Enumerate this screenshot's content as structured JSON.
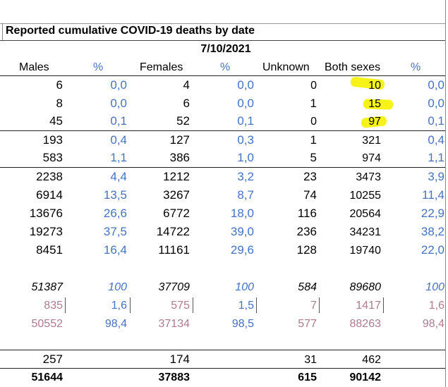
{
  "title": "Reported cumulative COVID-19 deaths by date",
  "date": "7/10/2021",
  "headers": {
    "males": "Males",
    "pct1": "%",
    "females": "Females",
    "pct2": "%",
    "unknown": "Unknown",
    "both": "Both sexes",
    "pct3": "%"
  },
  "rows": [
    {
      "males": "6",
      "mp": "0,0",
      "females": "4",
      "fp": "0,0",
      "unknown": "0",
      "both": "10",
      "bp": "0,0"
    },
    {
      "males": "8",
      "mp": "0,0",
      "females": "6",
      "fp": "0,0",
      "unknown": "1",
      "both": "15",
      "bp": "0,0"
    },
    {
      "males": "45",
      "mp": "0,1",
      "females": "52",
      "fp": "0,1",
      "unknown": "0",
      "both": "97",
      "bp": "0,1"
    },
    {
      "males": "193",
      "mp": "0,4",
      "females": "127",
      "fp": "0,3",
      "unknown": "1",
      "both": "321",
      "bp": "0,4"
    },
    {
      "males": "583",
      "mp": "1,1",
      "females": "386",
      "fp": "1,0",
      "unknown": "5",
      "both": "974",
      "bp": "1,1"
    },
    {
      "males": "2238",
      "mp": "4,4",
      "females": "1212",
      "fp": "3,2",
      "unknown": "23",
      "both": "3473",
      "bp": "3,9"
    },
    {
      "males": "6914",
      "mp": "13,5",
      "females": "3267",
      "fp": "8,7",
      "unknown": "74",
      "both": "10255",
      "bp": "11,4"
    },
    {
      "males": "13676",
      "mp": "26,6",
      "females": "6772",
      "fp": "18,0",
      "unknown": "116",
      "both": "20564",
      "bp": "22,9"
    },
    {
      "males": "19273",
      "mp": "37,5",
      "females": "14722",
      "fp": "39,0",
      "unknown": "236",
      "both": "34231",
      "bp": "38,2"
    },
    {
      "males": "8451",
      "mp": "16,4",
      "females": "11161",
      "fp": "29,6",
      "unknown": "128",
      "both": "19740",
      "bp": "22,0"
    }
  ],
  "subtotal": {
    "males": "51387",
    "mp": "100",
    "females": "37709",
    "fp": "100",
    "unknown": "584",
    "both": "89680",
    "bp": "100"
  },
  "split1": {
    "males": "835",
    "mp": "1,6",
    "females": "575",
    "fp": "1,5",
    "unknown": "7",
    "both": "1417",
    "bp": "1,6"
  },
  "split2": {
    "males": "50552",
    "mp": "98,4",
    "females": "37134",
    "fp": "98,5",
    "unknown": "577",
    "both": "88263",
    "bp": "98,4"
  },
  "extra": {
    "males": "257",
    "females": "174",
    "unknown": "31",
    "both": "462"
  },
  "total": {
    "males": "51644",
    "females": "37883",
    "unknown": "615",
    "both": "90142"
  },
  "colors": {
    "blue": "#4472c4",
    "pink": "#b07a8f",
    "highlight": "#f7f218"
  }
}
